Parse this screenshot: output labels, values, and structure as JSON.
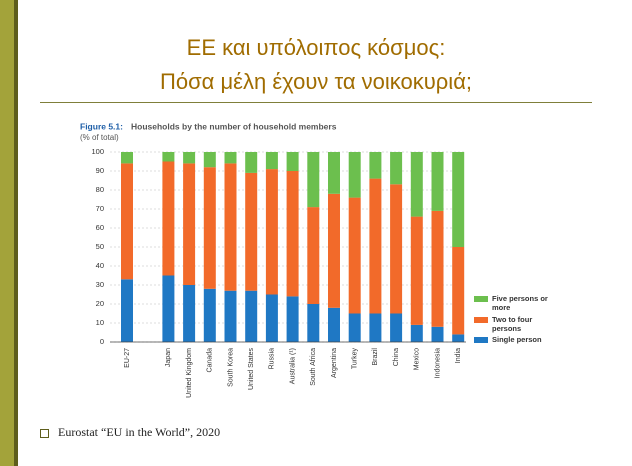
{
  "slide_title": [
    "ΕΕ και υπόλοιπος κόσμος:",
    "Πόσα μέλη έχουν τα νοικοκυριά;"
  ],
  "chart_data": {
    "type": "stacked-bar",
    "figure": "Figure 5.1:",
    "title": "Households by the number of household members",
    "subtitle": "(% of total)",
    "categories": [
      "EU-27",
      null,
      "Japan",
      "United Kingdom",
      "Canada",
      "South Korea",
      "United States",
      "Russia",
      "Australia (¹)",
      "South Africa",
      "Argentina",
      "Turkey",
      "Brazil",
      "China",
      "Mexico",
      "Indonesia",
      "India"
    ],
    "series": [
      {
        "name": "Single person",
        "color": "#1f78c4",
        "values": [
          33,
          null,
          35,
          30,
          28,
          27,
          27,
          25,
          24,
          20,
          18,
          15,
          15,
          15,
          9,
          8,
          4
        ]
      },
      {
        "name": "Two to four persons",
        "color": "#f26a2a",
        "values": [
          61,
          null,
          60,
          64,
          64,
          67,
          62,
          66,
          66,
          51,
          60,
          61,
          71,
          68,
          57,
          61,
          46
        ]
      },
      {
        "name": "Five persons or more",
        "color": "#6cbf4e",
        "values": [
          6,
          null,
          5,
          6,
          8,
          6,
          11,
          9,
          10,
          29,
          22,
          24,
          14,
          17,
          34,
          31,
          50
        ]
      }
    ],
    "ylim": [
      0,
      100
    ],
    "yticks": [
      0,
      10,
      20,
      30,
      40,
      50,
      60,
      70,
      80,
      90,
      100
    ],
    "grid": true,
    "legend": "right"
  },
  "footer": "Eurostat “EU in the World”, 2020"
}
